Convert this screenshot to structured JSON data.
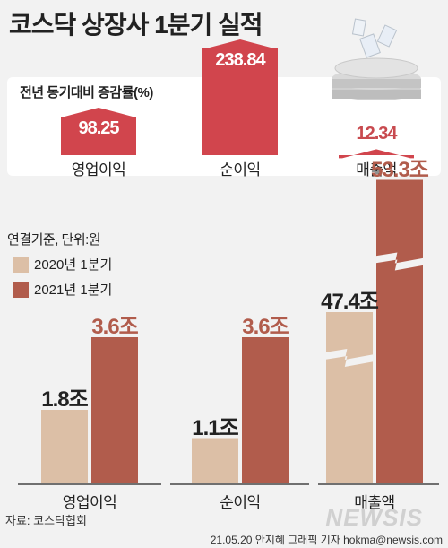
{
  "title": "코스닥 상장사 1분기 실적",
  "growth": {
    "title": "전년 동기대비 증감률(%)",
    "color": "#d1454d",
    "items": [
      {
        "label": "영업이익",
        "value": "98.25",
        "num": 98.25
      },
      {
        "label": "순이익",
        "value": "238.84",
        "num": 238.84
      },
      {
        "label": "매출액",
        "value": "12.34",
        "num": 12.34
      }
    ]
  },
  "basis_note": "연결기준, 단위:원",
  "legend": [
    {
      "label": "2020년 1분기",
      "color": "#dcbfa6"
    },
    {
      "label": "2021년 1분기",
      "color": "#b15c4c"
    }
  ],
  "chart_data": {
    "type": "bar",
    "categories": [
      "영업이익",
      "순이익",
      "매출액"
    ],
    "series": [
      {
        "name": "2020년 1분기",
        "values": [
          1.8,
          1.1,
          47.4
        ],
        "labels": [
          "1.8조",
          "1.1조",
          "47.4조"
        ]
      },
      {
        "name": "2021년 1분기",
        "values": [
          3.6,
          3.6,
          53.3
        ],
        "labels": [
          "3.6조",
          "3.6조",
          "53.3조"
        ]
      }
    ],
    "unit": "조",
    "broken_axis_category": "매출액"
  },
  "source": "자료: 코스닥협회",
  "credit": "21.05.20 안지혜 그래픽 기자 hokma@newsis.com",
  "watermark": "NEWSIS"
}
